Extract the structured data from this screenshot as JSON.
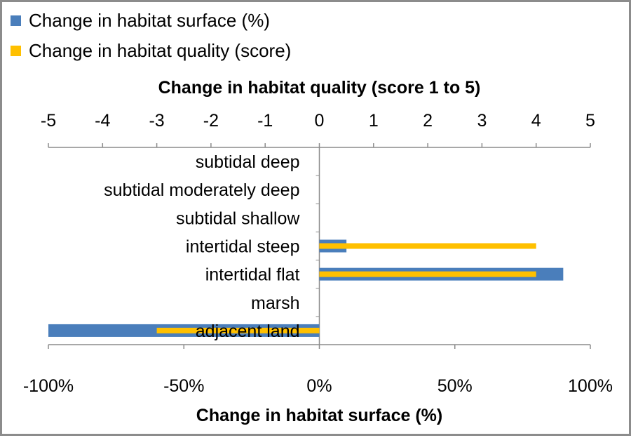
{
  "chart_data": {
    "type": "bar",
    "orientation": "horizontal",
    "categories": [
      "subtidal deep",
      "subtidal moderately deep",
      "subtidal shallow",
      "intertidal steep",
      "intertidal flat",
      "marsh",
      "adjacent land"
    ],
    "series": [
      {
        "name": "Change in habitat surface (%)",
        "axis": "bottom",
        "color": "#4a7ebb",
        "values": [
          0,
          0,
          0,
          10,
          90,
          0,
          -100
        ]
      },
      {
        "name": "Change in habitat quality (score)",
        "axis": "top",
        "color": "#ffc000",
        "values": [
          0,
          0,
          0,
          4,
          4,
          0,
          -3
        ]
      }
    ],
    "top_axis": {
      "title": "Change in habitat quality (score 1 to 5)",
      "range": [
        -5,
        5
      ],
      "ticks": [
        "-5",
        "-4",
        "-3",
        "-2",
        "-1",
        "0",
        "1",
        "2",
        "3",
        "4",
        "5"
      ]
    },
    "bottom_axis": {
      "title": "Change in habitat surface (%)",
      "range": [
        -100,
        100
      ],
      "ticks": [
        "-100%",
        "-50%",
        "0%",
        "50%",
        "100%"
      ]
    },
    "legend_position": "top-left",
    "grid": false
  }
}
